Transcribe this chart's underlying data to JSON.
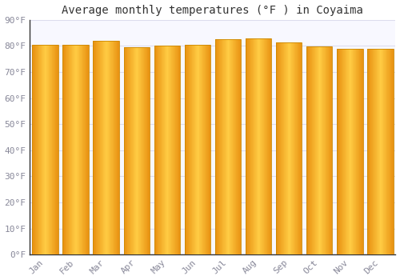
{
  "months": [
    "Jan",
    "Feb",
    "Mar",
    "Apr",
    "May",
    "Jun",
    "Jul",
    "Aug",
    "Sep",
    "Oct",
    "Nov",
    "Dec"
  ],
  "values": [
    80.5,
    80.5,
    82.0,
    79.5,
    80.0,
    80.5,
    82.5,
    83.0,
    81.5,
    79.8,
    79.0,
    79.0
  ],
  "title": "Average monthly temperatures (°F ) in Coyaima",
  "ylim": [
    0,
    90
  ],
  "yticks": [
    0,
    10,
    20,
    30,
    40,
    50,
    60,
    70,
    80,
    90
  ],
  "ytick_labels": [
    "0°F",
    "10°F",
    "20°F",
    "30°F",
    "40°F",
    "50°F",
    "60°F",
    "70°F",
    "80°F",
    "90°F"
  ],
  "bar_color_center": "#FFCC44",
  "bar_color_edge": "#E89010",
  "bar_edge_color": "#CC8800",
  "background_color": "#FFFFFF",
  "plot_bg_color": "#F8F8FF",
  "grid_color": "#DDDDEE",
  "title_fontsize": 10,
  "tick_fontsize": 8,
  "tick_color": "#888899",
  "spine_color": "#333333",
  "bar_width": 0.85
}
